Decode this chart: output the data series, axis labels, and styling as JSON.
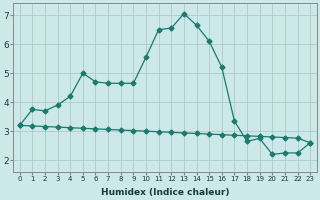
{
  "xlabel": "Humidex (Indice chaleur)",
  "ylabel": "",
  "background_color": "#cce8e8",
  "grid_color": "#b0c8c8",
  "line_color": "#1a7a6e",
  "xlim": [
    -0.5,
    23.5
  ],
  "ylim": [
    1.6,
    7.4
  ],
  "xticks": [
    0,
    1,
    2,
    3,
    4,
    5,
    6,
    7,
    8,
    9,
    10,
    11,
    12,
    13,
    14,
    15,
    16,
    17,
    18,
    19,
    20,
    21,
    22,
    23
  ],
  "yticks": [
    2,
    3,
    4,
    5,
    6,
    7
  ],
  "line1_x": [
    0,
    1,
    2,
    3,
    4,
    5,
    6,
    7,
    8,
    9,
    10,
    11,
    12,
    13,
    14,
    15,
    16,
    17,
    18,
    19,
    20,
    21,
    22,
    23
  ],
  "line1_y": [
    3.2,
    3.75,
    3.7,
    3.9,
    4.2,
    5.0,
    4.7,
    4.65,
    4.65,
    4.65,
    5.55,
    6.5,
    6.55,
    7.05,
    6.65,
    6.1,
    5.2,
    3.35,
    2.65,
    2.75,
    2.2,
    2.25,
    2.25,
    2.6
  ],
  "line2_x": [
    0,
    1,
    2,
    3,
    4,
    5,
    6,
    7,
    8,
    9,
    10,
    11,
    12,
    13,
    14,
    15,
    16,
    17,
    18,
    19,
    20,
    21,
    22,
    23
  ],
  "line2_y": [
    3.2,
    3.18,
    3.16,
    3.14,
    3.12,
    3.1,
    3.08,
    3.06,
    3.04,
    3.02,
    3.0,
    2.98,
    2.96,
    2.94,
    2.92,
    2.9,
    2.88,
    2.86,
    2.84,
    2.82,
    2.8,
    2.78,
    2.76,
    2.6
  ],
  "marker": "D",
  "markersize": 2.5
}
